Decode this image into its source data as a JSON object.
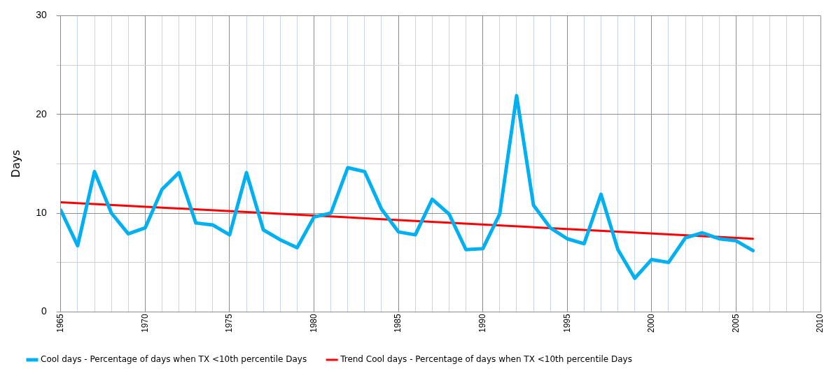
{
  "chart_data": {
    "type": "line",
    "ylabel": "Days",
    "legend": "bottom",
    "grid": true,
    "marker": "none",
    "line_style": "solid",
    "xlim": [
      1965,
      2010
    ],
    "xticks": [
      1965,
      {
        "value": 1966,
        "label": null
      },
      {
        "value": 1967,
        "label": null
      },
      {
        "value": 1968,
        "label": null
      },
      {
        "value": 1969,
        "label": null
      },
      1970,
      {
        "value": 1971,
        "label": null
      },
      {
        "value": 1972,
        "label": null
      },
      {
        "value": 1973,
        "label": null
      },
      {
        "value": 1974,
        "label": null
      },
      1975,
      {
        "value": 1976,
        "label": null
      },
      {
        "value": 1977,
        "label": null
      },
      {
        "value": 1978,
        "label": null
      },
      {
        "value": 1979,
        "label": null
      },
      1980,
      {
        "value": 1981,
        "label": null
      },
      {
        "value": 1982,
        "label": null
      },
      {
        "value": 1983,
        "label": null
      },
      {
        "value": 1984,
        "label": null
      },
      1985,
      {
        "value": 1986,
        "label": null
      },
      {
        "value": 1987,
        "label": null
      },
      {
        "value": 1988,
        "label": null
      },
      {
        "value": 1989,
        "label": null
      },
      1990,
      {
        "value": 1991,
        "label": null
      },
      {
        "value": 1992,
        "label": null
      },
      {
        "value": 1993,
        "label": null
      },
      {
        "value": 1994,
        "label": null
      },
      1995,
      {
        "value": 1996,
        "label": null
      },
      {
        "value": 1997,
        "label": null
      },
      {
        "value": 1998,
        "label": null
      },
      {
        "value": 1999,
        "label": null
      },
      2000,
      {
        "value": 2001,
        "label": null
      },
      {
        "value": 2002,
        "label": null
      },
      {
        "value": 2003,
        "label": null
      },
      {
        "value": 2004,
        "label": null
      },
      2005,
      {
        "value": 2006,
        "label": null
      },
      {
        "value": 2007,
        "label": null
      },
      {
        "value": 2008,
        "label": null
      },
      {
        "value": 2009,
        "label": null
      },
      2010
    ],
    "ylim": [
      0,
      30
    ],
    "yticks": [
      0,
      {
        "value": 5,
        "label": null
      },
      10,
      {
        "value": 15,
        "label": null
      },
      20,
      {
        "value": 25,
        "label": null
      },
      30
    ],
    "x": [
      1965,
      1966,
      1967,
      1968,
      1969,
      1970,
      1971,
      1972,
      1973,
      1974,
      1975,
      1976,
      1977,
      1978,
      1979,
      1980,
      1981,
      1982,
      1983,
      1984,
      1985,
      1986,
      1987,
      1988,
      1989,
      1990,
      1991,
      1992,
      1993,
      1994,
      1995,
      1996,
      1997,
      1998,
      1999,
      2000,
      2001,
      2002,
      2003,
      2004,
      2005,
      2006
    ],
    "series": [
      {
        "name": "Cool days - Percentage of days when TX <10th percentile Days",
        "color": "#00b0f0",
        "values": [
          10.3,
          6.7,
          14.2,
          10.0,
          7.9,
          8.5,
          12.4,
          14.1,
          9.0,
          8.8,
          7.8,
          14.1,
          8.3,
          7.3,
          6.5,
          9.6,
          10.0,
          14.6,
          14.2,
          10.4,
          8.1,
          7.8,
          11.4,
          9.9,
          6.3,
          6.4,
          9.9,
          21.9,
          10.8,
          8.5,
          7.4,
          6.9,
          11.9,
          6.3,
          3.4,
          5.3,
          5.0,
          7.5,
          8.0,
          7.4,
          7.2,
          6.2
        ]
      },
      {
        "name": "Trend Cool days - Percentage of days when TX <10th percentile Days",
        "color": "#ff0000",
        "x": [
          1965,
          2006
        ],
        "values": [
          11.1,
          7.4
        ]
      }
    ]
  }
}
